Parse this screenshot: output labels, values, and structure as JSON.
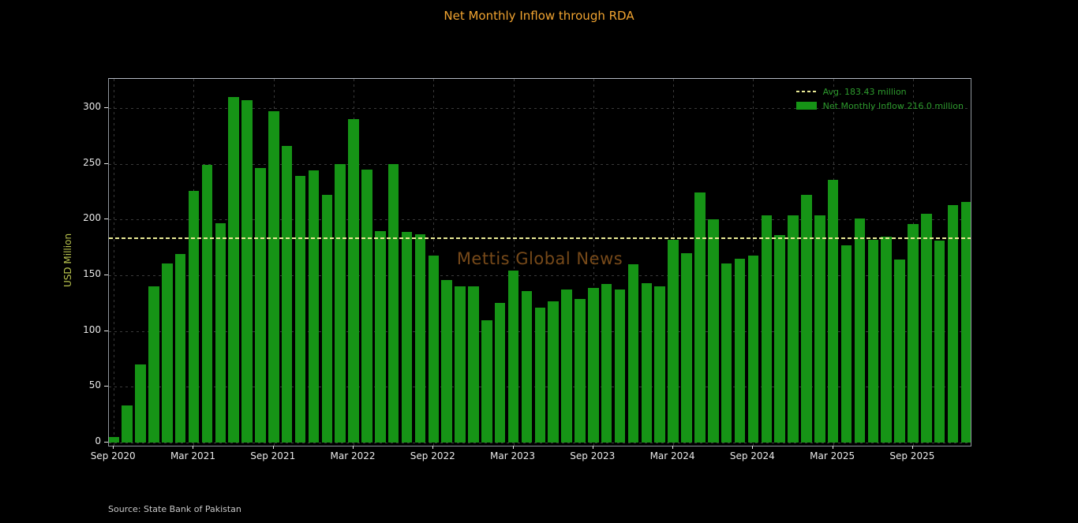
{
  "title": "Net Monthly Inflow through RDA",
  "watermark": "Mettis Global News",
  "source": "Source: State Bank of Pakistan",
  "legend": {
    "avg_label": "Avg. 183.43 million",
    "series_label": "Net Monthly Inflow 216.0 million"
  },
  "colors": {
    "background": "#000000",
    "bar": "#169416",
    "title": "#f0a330",
    "average_line": "#eaea96",
    "legend_text": "#2d9b2d",
    "axis_label": "#b8c24e",
    "tick_label": "#e8e8e8",
    "grid": "#3a3a3a",
    "watermark": "rgba(196,122,42,0.6)",
    "source": "#c8c8c8",
    "spine_top": "#b4bac4",
    "spine": "#8f959c"
  },
  "chart_data": {
    "type": "bar",
    "title": "Net Monthly Inflow through RDA",
    "xlabel": "",
    "ylabel": "USD Million",
    "average": 183.43,
    "latest": 216.0,
    "grid": true,
    "legend_position": "upper right",
    "ylim": [
      0,
      326
    ],
    "yticks": [
      0,
      50,
      100,
      150,
      200,
      250,
      300
    ],
    "xtick_labels": [
      "Sep 2020",
      "Mar 2021",
      "Sep 2021",
      "Mar 2022",
      "Sep 2022",
      "Mar 2023",
      "Sep 2023",
      "Mar 2024",
      "Sep 2024",
      "Mar 2025",
      "Sep 2025"
    ],
    "xtick_month_indices": [
      0,
      6,
      12,
      18,
      24,
      30,
      36,
      42,
      48,
      54,
      60
    ],
    "categories": [
      "Sep 2020",
      "Oct 2020",
      "Nov 2020",
      "Dec 2020",
      "Jan 2021",
      "Feb 2021",
      "Mar 2021",
      "Apr 2021",
      "May 2021",
      "Jun 2021",
      "Jul 2021",
      "Aug 2021",
      "Sep 2021",
      "Oct 2021",
      "Nov 2021",
      "Dec 2021",
      "Jan 2022",
      "Feb 2022",
      "Mar 2022",
      "Apr 2022",
      "May 2022",
      "Jun 2022",
      "Jul 2022",
      "Aug 2022",
      "Sep 2022",
      "Oct 2022",
      "Nov 2022",
      "Dec 2022",
      "Jan 2023",
      "Feb 2023",
      "Mar 2023",
      "Apr 2023",
      "May 2023",
      "Jun 2023",
      "Jul 2023",
      "Aug 2023",
      "Sep 2023",
      "Oct 2023",
      "Nov 2023",
      "Dec 2023",
      "Jan 2024",
      "Feb 2024",
      "Mar 2024",
      "Apr 2024",
      "May 2024",
      "Jun 2024",
      "Jul 2024",
      "Aug 2024",
      "Sep 2024",
      "Oct 2024",
      "Nov 2024",
      "Dec 2024",
      "Jan 2025",
      "Feb 2025",
      "Mar 2025",
      "Apr 2025",
      "May 2025",
      "Jun 2025",
      "Jul 2025",
      "Aug 2025",
      "Sep 2025",
      "Oct 2025",
      "Nov 2025",
      "Dec 2025",
      "Jan 2026"
    ],
    "values": [
      5,
      33,
      70,
      140,
      161,
      169,
      226,
      249,
      197,
      310,
      307,
      246,
      297,
      266,
      239,
      244,
      222,
      250,
      290,
      245,
      190,
      250,
      189,
      187,
      168,
      146,
      140,
      140,
      110,
      125,
      154,
      136,
      121,
      127,
      137,
      129,
      139,
      142,
      137,
      160,
      143,
      140,
      182,
      170,
      224,
      200,
      161,
      165,
      168,
      204,
      186,
      204,
      222,
      204,
      236,
      177,
      201,
      182,
      185,
      164,
      196,
      205,
      181,
      213,
      216
    ]
  }
}
